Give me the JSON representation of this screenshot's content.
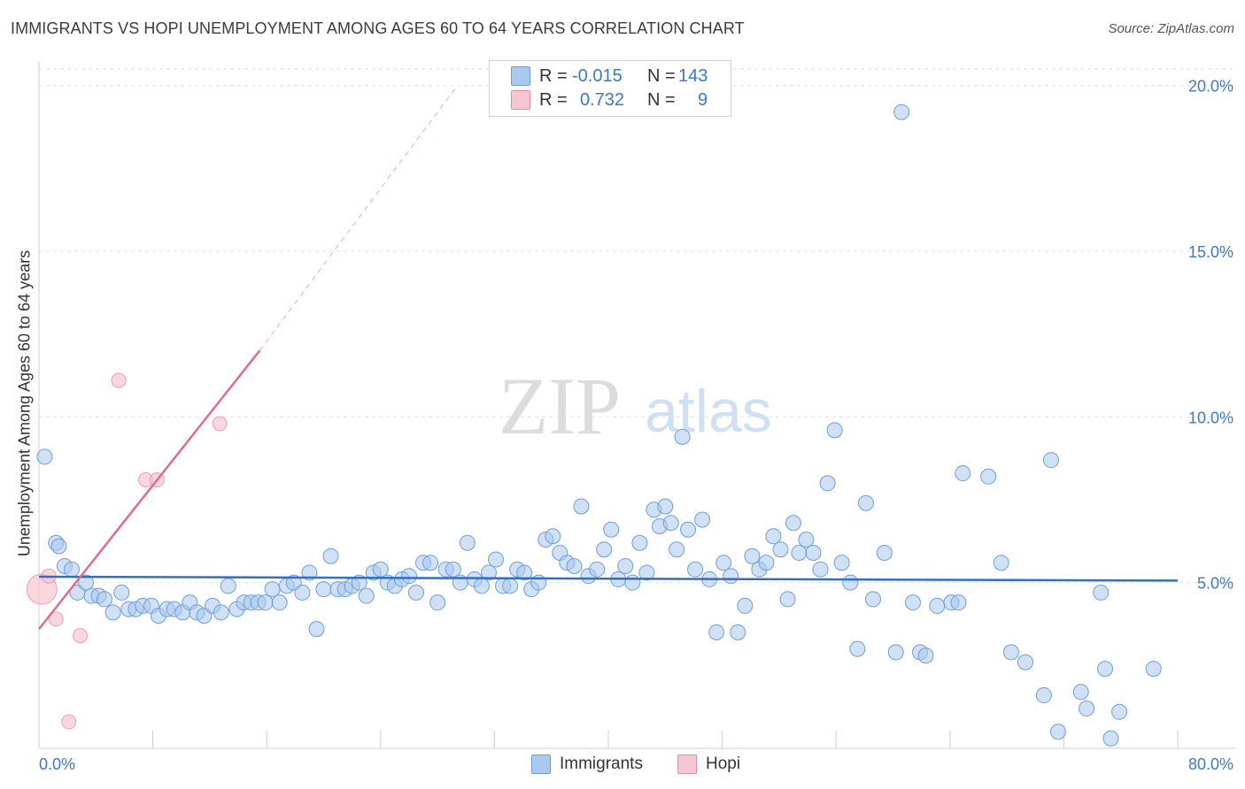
{
  "title": "IMMIGRANTS VS HOPI UNEMPLOYMENT AMONG AGES 60 TO 64 YEARS CORRELATION CHART",
  "source": "Source: ZipAtlas.com",
  "watermark": {
    "zip": "ZIP",
    "atlas": "atlas"
  },
  "legend_top": {
    "r_label": "R =",
    "n_label": "N =",
    "rows": [
      {
        "name": "Immigrants",
        "r": "-0.015",
        "n": "143",
        "color": "#a9c9ef",
        "border": "#6d9edb"
      },
      {
        "name": "Hopi",
        "r": "0.732",
        "n": "9",
        "color": "#f8c5d2",
        "border": "#e98ba5"
      }
    ]
  },
  "legend_bottom": [
    {
      "label": "Immigrants",
      "color": "#a9c9ef",
      "border": "#6d9edb"
    },
    {
      "label": "Hopi",
      "color": "#f8c5d2",
      "border": "#e98ba5"
    }
  ],
  "chart_data": {
    "type": "scatter",
    "title": "IMMIGRANTS VS HOPI UNEMPLOYMENT AMONG AGES 60 TO 64 YEARS CORRELATION CHART",
    "xlabel": "",
    "ylabel": "Unemployment Among Ages 60 to 64 years",
    "xlim": [
      0,
      80
    ],
    "ylim": [
      0,
      20.5
    ],
    "x_tick_labels": [
      "0.0%",
      "80.0%"
    ],
    "y_ticks": [
      5,
      10,
      15,
      20
    ],
    "y_tick_labels": [
      "5.0%",
      "10.0%",
      "15.0%",
      "20.0%"
    ],
    "grid": true,
    "legend_position": "top-center",
    "colors": {
      "immigrants": "#6d9edb",
      "immigrants_fill": "#a9c9ef",
      "hopi": "#e98ba5",
      "hopi_fill": "#f8c5d2",
      "immigrants_line": "#2f6fc7",
      "hopi_line": "#e06b8f",
      "tick_text": "#3b79c9"
    },
    "series": [
      {
        "name": "Immigrants",
        "points": [
          [
            0.4,
            8.8
          ],
          [
            1.2,
            6.2
          ],
          [
            1.4,
            6.1
          ],
          [
            1.8,
            5.5
          ],
          [
            2.3,
            5.4
          ],
          [
            2.7,
            4.7
          ],
          [
            3.3,
            5.0
          ],
          [
            3.7,
            4.6
          ],
          [
            4.2,
            4.6
          ],
          [
            4.6,
            4.5
          ],
          [
            5.2,
            4.1
          ],
          [
            5.8,
            4.7
          ],
          [
            6.3,
            4.2
          ],
          [
            6.8,
            4.2
          ],
          [
            7.3,
            4.3
          ],
          [
            7.9,
            4.3
          ],
          [
            8.4,
            4.0
          ],
          [
            9.0,
            4.2
          ],
          [
            9.5,
            4.2
          ],
          [
            10.1,
            4.1
          ],
          [
            10.6,
            4.4
          ],
          [
            11.1,
            4.1
          ],
          [
            11.6,
            4.0
          ],
          [
            12.2,
            4.3
          ],
          [
            12.8,
            4.1
          ],
          [
            13.3,
            4.9
          ],
          [
            13.9,
            4.2
          ],
          [
            14.4,
            4.4
          ],
          [
            14.9,
            4.4
          ],
          [
            15.4,
            4.4
          ],
          [
            15.9,
            4.4
          ],
          [
            16.4,
            4.8
          ],
          [
            16.9,
            4.4
          ],
          [
            17.4,
            4.9
          ],
          [
            17.9,
            5.0
          ],
          [
            18.5,
            4.7
          ],
          [
            19.0,
            5.3
          ],
          [
            19.5,
            3.6
          ],
          [
            20.0,
            4.8
          ],
          [
            20.5,
            5.8
          ],
          [
            21.0,
            4.8
          ],
          [
            21.5,
            4.8
          ],
          [
            22.0,
            4.9
          ],
          [
            22.5,
            5.0
          ],
          [
            23.0,
            4.6
          ],
          [
            23.5,
            5.3
          ],
          [
            24.0,
            5.4
          ],
          [
            24.5,
            5.0
          ],
          [
            25.0,
            4.9
          ],
          [
            25.5,
            5.1
          ],
          [
            26.0,
            5.2
          ],
          [
            26.5,
            4.7
          ],
          [
            27.0,
            5.6
          ],
          [
            27.5,
            5.6
          ],
          [
            28.0,
            4.4
          ],
          [
            28.6,
            5.4
          ],
          [
            29.1,
            5.4
          ],
          [
            29.6,
            5.0
          ],
          [
            30.1,
            6.2
          ],
          [
            30.6,
            5.1
          ],
          [
            31.1,
            4.9
          ],
          [
            31.6,
            5.3
          ],
          [
            32.1,
            5.7
          ],
          [
            32.6,
            4.9
          ],
          [
            33.1,
            4.9
          ],
          [
            33.6,
            5.4
          ],
          [
            34.1,
            5.3
          ],
          [
            34.6,
            4.8
          ],
          [
            35.1,
            5.0
          ],
          [
            35.6,
            6.3
          ],
          [
            36.1,
            6.4
          ],
          [
            36.6,
            5.9
          ],
          [
            37.1,
            5.6
          ],
          [
            37.6,
            5.5
          ],
          [
            38.1,
            7.3
          ],
          [
            38.6,
            5.2
          ],
          [
            39.2,
            5.4
          ],
          [
            39.7,
            6.0
          ],
          [
            40.2,
            6.6
          ],
          [
            40.7,
            5.1
          ],
          [
            41.2,
            5.5
          ],
          [
            41.7,
            5.0
          ],
          [
            42.2,
            6.2
          ],
          [
            42.7,
            5.3
          ],
          [
            43.2,
            7.2
          ],
          [
            43.6,
            6.7
          ],
          [
            44.0,
            7.3
          ],
          [
            44.4,
            6.8
          ],
          [
            44.8,
            6.0
          ],
          [
            45.2,
            9.4
          ],
          [
            45.6,
            6.6
          ],
          [
            46.1,
            5.4
          ],
          [
            46.6,
            6.9
          ],
          [
            47.1,
            5.1
          ],
          [
            47.6,
            3.5
          ],
          [
            48.1,
            5.6
          ],
          [
            48.6,
            5.2
          ],
          [
            49.1,
            3.5
          ],
          [
            49.6,
            4.3
          ],
          [
            50.1,
            5.8
          ],
          [
            50.6,
            5.4
          ],
          [
            51.1,
            5.6
          ],
          [
            51.6,
            6.4
          ],
          [
            52.1,
            6.0
          ],
          [
            52.6,
            4.5
          ],
          [
            53.0,
            6.8
          ],
          [
            53.4,
            5.9
          ],
          [
            53.9,
            6.3
          ],
          [
            54.4,
            5.9
          ],
          [
            54.9,
            5.4
          ],
          [
            55.4,
            8.0
          ],
          [
            55.9,
            9.6
          ],
          [
            56.4,
            5.6
          ],
          [
            57.0,
            5.0
          ],
          [
            57.5,
            3.0
          ],
          [
            58.1,
            7.4
          ],
          [
            58.6,
            4.5
          ],
          [
            59.4,
            5.9
          ],
          [
            60.2,
            2.9
          ],
          [
            60.6,
            19.2
          ],
          [
            61.4,
            4.4
          ],
          [
            61.9,
            2.9
          ],
          [
            62.3,
            2.8
          ],
          [
            63.1,
            4.3
          ],
          [
            64.1,
            4.4
          ],
          [
            64.6,
            4.4
          ],
          [
            64.9,
            8.3
          ],
          [
            66.7,
            8.2
          ],
          [
            67.6,
            5.6
          ],
          [
            68.3,
            2.9
          ],
          [
            69.3,
            2.6
          ],
          [
            70.6,
            1.6
          ],
          [
            71.1,
            8.7
          ],
          [
            71.6,
            0.5
          ],
          [
            73.2,
            1.7
          ],
          [
            73.6,
            1.2
          ],
          [
            74.6,
            4.7
          ],
          [
            74.9,
            2.4
          ],
          [
            75.3,
            0.3
          ],
          [
            75.9,
            1.1
          ],
          [
            78.3,
            2.4
          ]
        ],
        "trend": {
          "x": [
            0,
            80
          ],
          "y": [
            5.18,
            5.06
          ]
        }
      },
      {
        "name": "Hopi",
        "points": [
          [
            0.2,
            4.8
          ],
          [
            0.7,
            5.2
          ],
          [
            1.2,
            3.9
          ],
          [
            2.1,
            0.8
          ],
          [
            2.9,
            3.4
          ],
          [
            5.6,
            11.1
          ],
          [
            7.5,
            8.1
          ],
          [
            8.3,
            8.1
          ],
          [
            12.7,
            9.8
          ]
        ],
        "trend": {
          "x": [
            0,
            15.5
          ],
          "y": [
            3.6,
            12.0
          ]
        },
        "trend_extension": {
          "x": [
            15.5,
            29.4
          ],
          "y": [
            12.0,
            20.0
          ]
        }
      }
    ]
  }
}
